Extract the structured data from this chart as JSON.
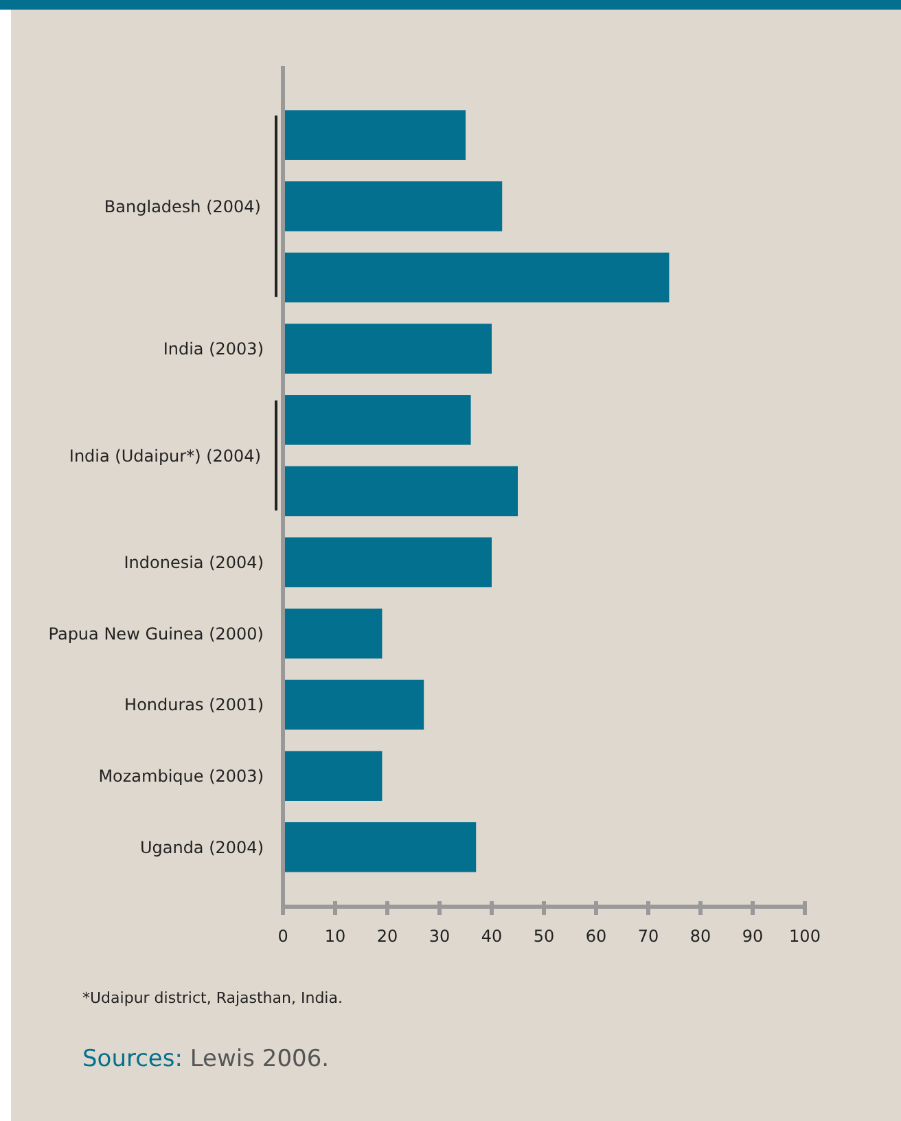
{
  "chart_data": {
    "type": "bar",
    "orientation": "horizontal",
    "categories": [
      null,
      "Bangladesh (2004)",
      null,
      "India (2003)",
      "India (Udaipur*) (2004)",
      null,
      "Indonesia (2004)",
      "Papua New Guinea (2000)",
      "Honduras (2001)",
      "Mozambique (2003)",
      "Uganda (2004)"
    ],
    "values": [
      35,
      42,
      74,
      40,
      36,
      45,
      40,
      19,
      27,
      19,
      37
    ],
    "color": "#03708f",
    "xlim": [
      0,
      100
    ],
    "xticks": [
      0,
      10,
      20,
      30,
      40,
      50,
      60,
      70,
      80,
      90,
      100
    ],
    "grid": false,
    "annotations": [
      "*Udaipur district, Rajasthan, India.",
      "Sources: Lewis 2006."
    ]
  }
}
